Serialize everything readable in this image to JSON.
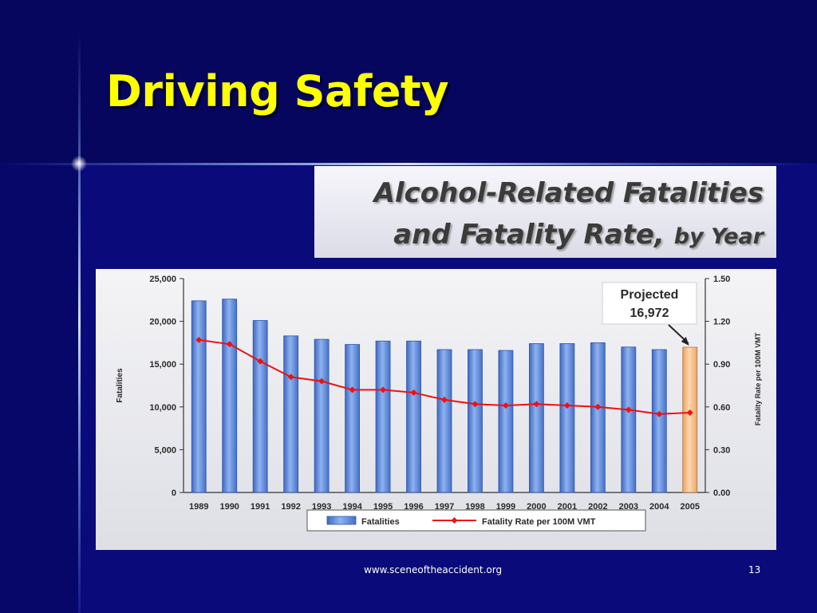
{
  "slide": {
    "title": "Driving Safety",
    "footer_url": "www.sceneoftheaccident.org",
    "page_number": "13",
    "heading_line1": "Alcohol-Related Fatalities",
    "heading_line2_main": "and Fatality Rate,",
    "heading_line2_small": "by Year",
    "colors": {
      "background": "#0a0a7a",
      "title": "#ffff00"
    }
  },
  "chart_data": {
    "type": "bar",
    "title": "Alcohol-Related Fatalities and Fatality Rate, by Year",
    "categories": [
      "1989",
      "1990",
      "1991",
      "1992",
      "1993",
      "1994",
      "1995",
      "1996",
      "1997",
      "1998",
      "1999",
      "2000",
      "2001",
      "2002",
      "2003",
      "2004",
      "2005"
    ],
    "series": [
      {
        "name": "Fatalities",
        "type": "bar",
        "axis": "left",
        "color": "#5b86d6",
        "highlight_color": "#f7bf8c",
        "highlight_index": 16,
        "values": [
          22400,
          22600,
          20100,
          18300,
          17900,
          17300,
          17700,
          17700,
          16700,
          16700,
          16600,
          17400,
          17400,
          17500,
          17000,
          16700,
          16972
        ]
      },
      {
        "name": "Fatality Rate per 100M VMT",
        "type": "line",
        "axis": "right",
        "color": "#ee1111",
        "values": [
          1.07,
          1.04,
          0.92,
          0.81,
          0.78,
          0.72,
          0.72,
          0.7,
          0.65,
          0.62,
          0.61,
          0.62,
          0.61,
          0.6,
          0.58,
          0.55,
          0.56
        ]
      }
    ],
    "ylabel": "Fatalities",
    "y2label": "Fatality Rate per 100M VMT",
    "ylim": [
      0,
      25000
    ],
    "y2lim": [
      0,
      1.5
    ],
    "yticks": [
      "0",
      "5,000",
      "10,000",
      "15,000",
      "20,000",
      "25,000"
    ],
    "y2ticks": [
      "0.00",
      "0.30",
      "0.60",
      "0.90",
      "1.20",
      "1.50"
    ],
    "grid": false,
    "legend_position": "bottom",
    "annotation": {
      "line1": "Projected",
      "line2": "16,972",
      "target_index": 16
    }
  }
}
